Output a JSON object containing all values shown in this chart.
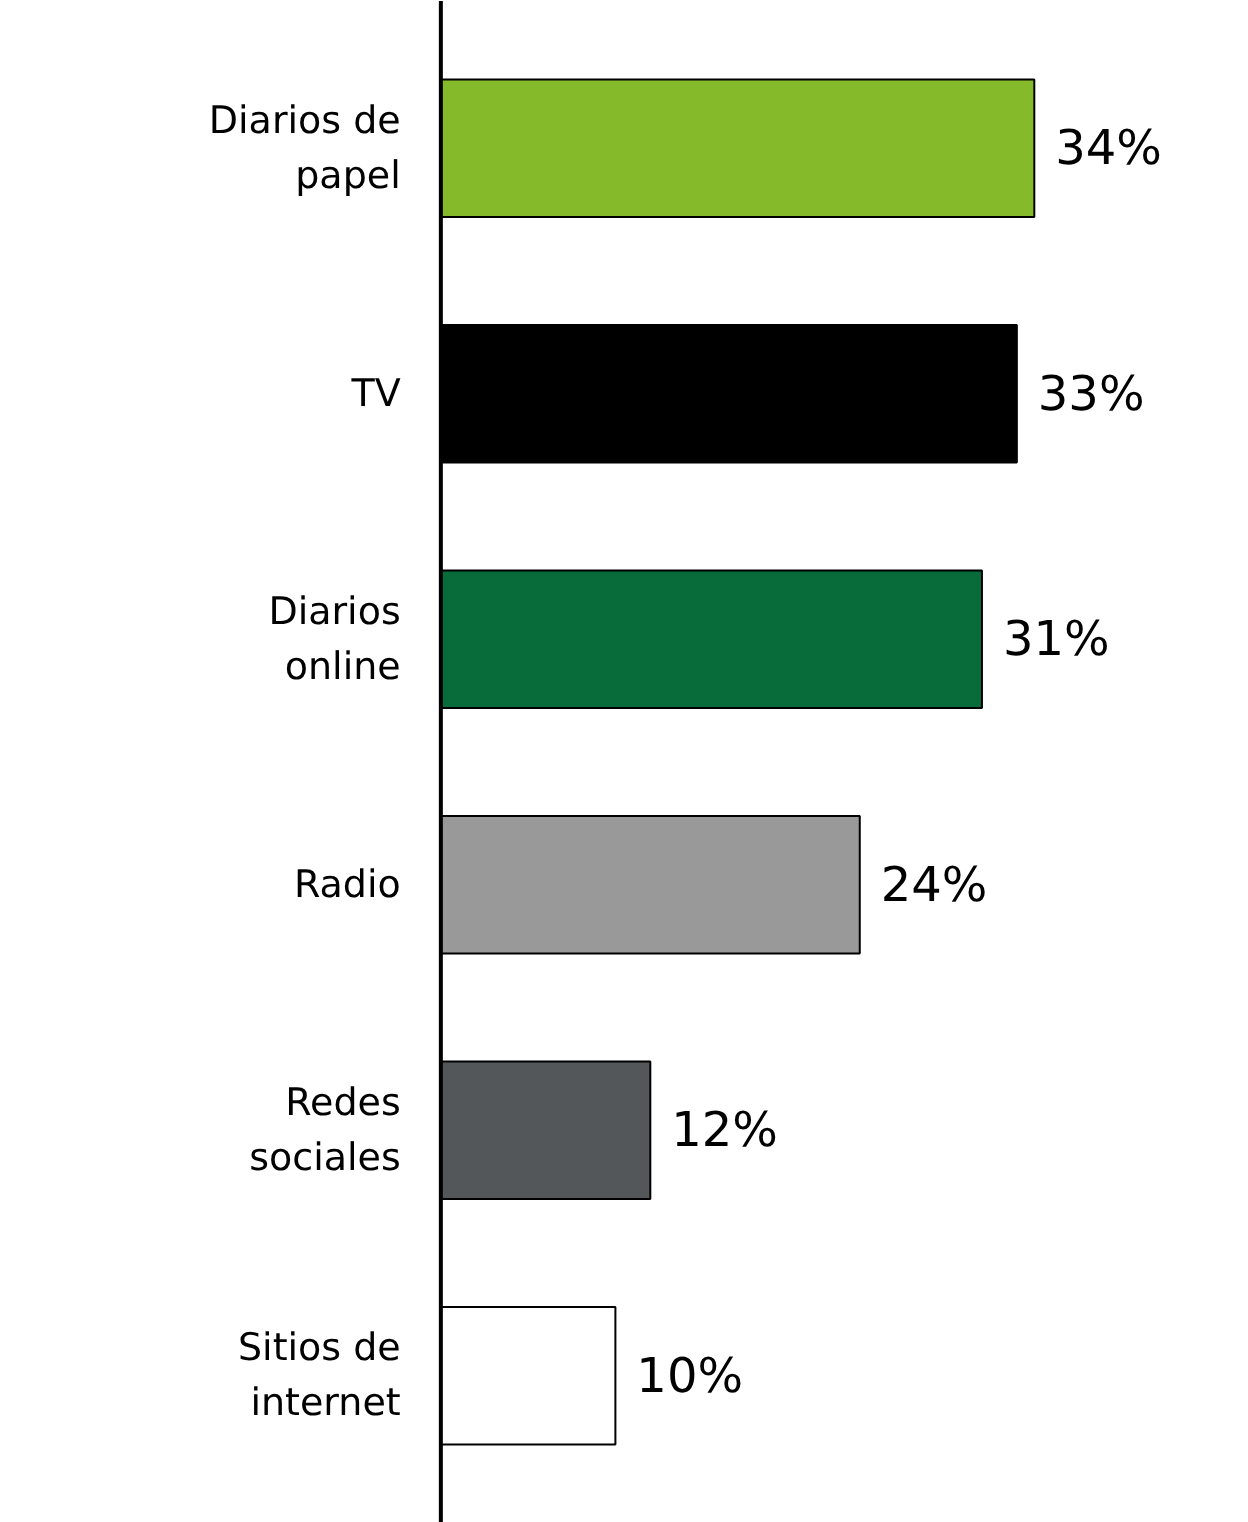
{
  "chart_data": {
    "type": "bar",
    "orientation": "horizontal",
    "value_labels": [
      "34%",
      "33%",
      "31%",
      "24%",
      "12%",
      "10%"
    ],
    "categories": [
      "Diarios de papel",
      "TV",
      "Diarios online",
      "Radio",
      "Redes sociales",
      "Sitios de internet"
    ],
    "values": [
      34,
      33,
      31,
      24,
      12,
      10
    ],
    "colors": [
      "#85bb2a",
      "#000000",
      "#076b3a",
      "#999999",
      "#54575a",
      "#ffffff"
    ]
  }
}
